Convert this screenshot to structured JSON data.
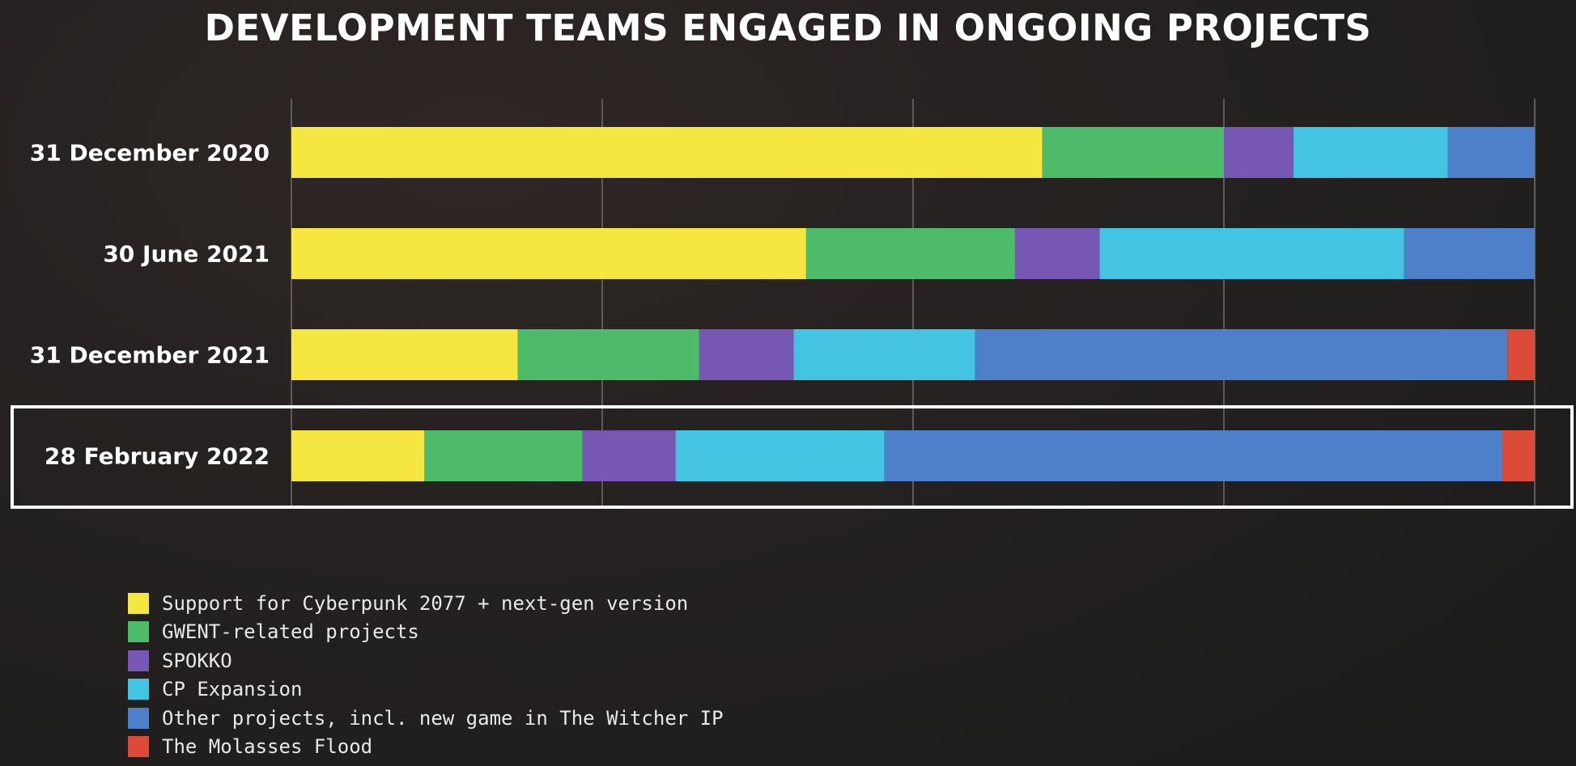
{
  "chart_data": {
    "type": "bar",
    "orientation": "horizontal",
    "stacked": true,
    "normalized": true,
    "title": "DEVELOPMENT TEAMS ENGAGED IN ONGOING PROJECTS",
    "categories": [
      "31 December 2020",
      "30 June 2021",
      "31 December 2021",
      "28 February 2022"
    ],
    "highlighted_category": "28 February 2022",
    "xlim": [
      0,
      100
    ],
    "grid": true,
    "legend_position": "bottom-left",
    "series": [
      {
        "name": "Support for Cyberpunk 2077 + next-gen version",
        "color": "#f5e642",
        "values": [
          60.4,
          41.4,
          18.2,
          10.7
        ]
      },
      {
        "name": "GWENT-related projects",
        "color": "#4dbb6a",
        "values": [
          14.6,
          16.8,
          14.6,
          12.7
        ]
      },
      {
        "name": "SPOKKO",
        "color": "#7657b3",
        "values": [
          5.6,
          6.8,
          7.6,
          7.5
        ]
      },
      {
        "name": "CP Expansion",
        "color": "#42c4e2",
        "values": [
          12.4,
          24.5,
          14.6,
          16.8
        ]
      },
      {
        "name": "Other projects, incl. new game in The Witcher IP",
        "color": "#4d80c9",
        "values": [
          7.0,
          10.5,
          42.8,
          49.7
        ]
      },
      {
        "name": "The Molasses Flood",
        "color": "#dc4a38",
        "values": [
          0,
          0,
          2.2,
          2.6
        ]
      }
    ]
  }
}
